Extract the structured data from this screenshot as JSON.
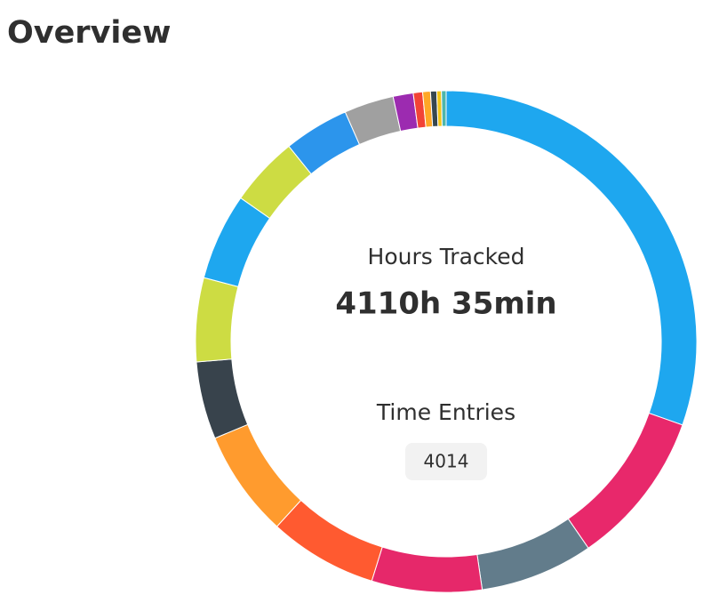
{
  "header": {
    "title": "Overview"
  },
  "chart_data": {
    "type": "pie",
    "values": [
      30.4,
      10,
      7.3,
      7.1,
      7,
      6.9,
      5,
      5.4,
      5.6,
      4.5,
      4.2,
      3.2,
      1.3,
      0.6,
      0.5,
      0.4,
      0.3,
      0.3
    ],
    "colors": [
      "#1ea7ef",
      "#e8286b",
      "#627c8b",
      "#e6286a",
      "#ff5a30",
      "#ff9b2e",
      "#38434c",
      "#cddc43",
      "#1ea7ef",
      "#cddc43",
      "#2c95ec",
      "#a0a0a0",
      "#9c2bb0",
      "#f24336",
      "#ffa726",
      "#37474f",
      "#f2c418",
      "#4db6ac"
    ]
  },
  "center": {
    "hours_label": "Hours Tracked",
    "hours_value": "4110h 35min",
    "entries_label": "Time Entries",
    "entries_value": 4014
  }
}
